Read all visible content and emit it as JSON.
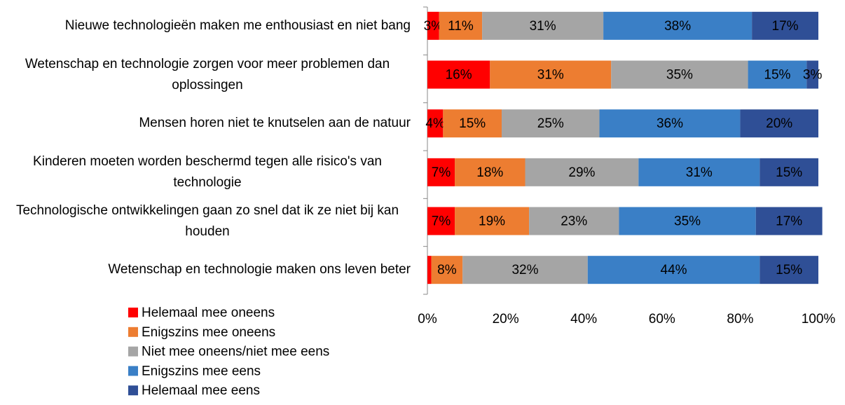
{
  "chart_data": {
    "type": "stacked-barh",
    "categories": [
      "Nieuwe technologieën maken me enthousiast en niet bang",
      "Wetenschap en technologie zorgen voor meer problemen dan oplossingen",
      "Mensen horen niet te knutselen aan de natuur",
      "Kinderen moeten worden beschermd tegen alle risico's van technologie",
      "Technologische ontwikkelingen gaan zo snel dat ik ze niet bij kan houden",
      "Wetenschap en technologie maken ons leven beter"
    ],
    "series": [
      {
        "name": "Helemaal mee oneens",
        "color": "#ff0000",
        "values": [
          3,
          16,
          4,
          7,
          7,
          1
        ],
        "value_labels": [
          "3%",
          "16%",
          "4%",
          "7%",
          "7%",
          null
        ]
      },
      {
        "name": "Enigszins mee oneens",
        "color": "#ed7d31",
        "values": [
          11,
          31,
          15,
          18,
          19,
          8
        ],
        "value_labels": [
          "11%",
          "31%",
          "15%",
          "18%",
          "19%",
          "8%"
        ]
      },
      {
        "name": "Niet mee oneens/niet mee eens",
        "color": "#a5a5a5",
        "values": [
          31,
          35,
          25,
          29,
          23,
          32
        ],
        "value_labels": [
          "31%",
          "35%",
          "25%",
          "29%",
          "23%",
          "32%"
        ]
      },
      {
        "name": "Enigszins mee eens",
        "color": "#3a7fc6",
        "values": [
          38,
          15,
          36,
          31,
          35,
          44
        ],
        "value_labels": [
          "38%",
          "15%",
          "36%",
          "31%",
          "35%",
          "44%"
        ]
      },
      {
        "name": "Helemaal mee eens",
        "color": "#2f4f96",
        "values": [
          17,
          3,
          20,
          15,
          17,
          15
        ],
        "value_labels": [
          "17%",
          "3%",
          "20%",
          "15%",
          "17%",
          "15%"
        ]
      }
    ],
    "xlim": [
      0,
      100
    ],
    "xticks": [
      {
        "value": 0,
        "label": "0%"
      },
      {
        "value": 20,
        "label": "20%"
      },
      {
        "value": 40,
        "label": "40%"
      },
      {
        "value": 60,
        "label": "60%"
      },
      {
        "value": 80,
        "label": "80%"
      },
      {
        "value": 100,
        "label": "100%"
      }
    ],
    "legend": "bottom-left"
  }
}
